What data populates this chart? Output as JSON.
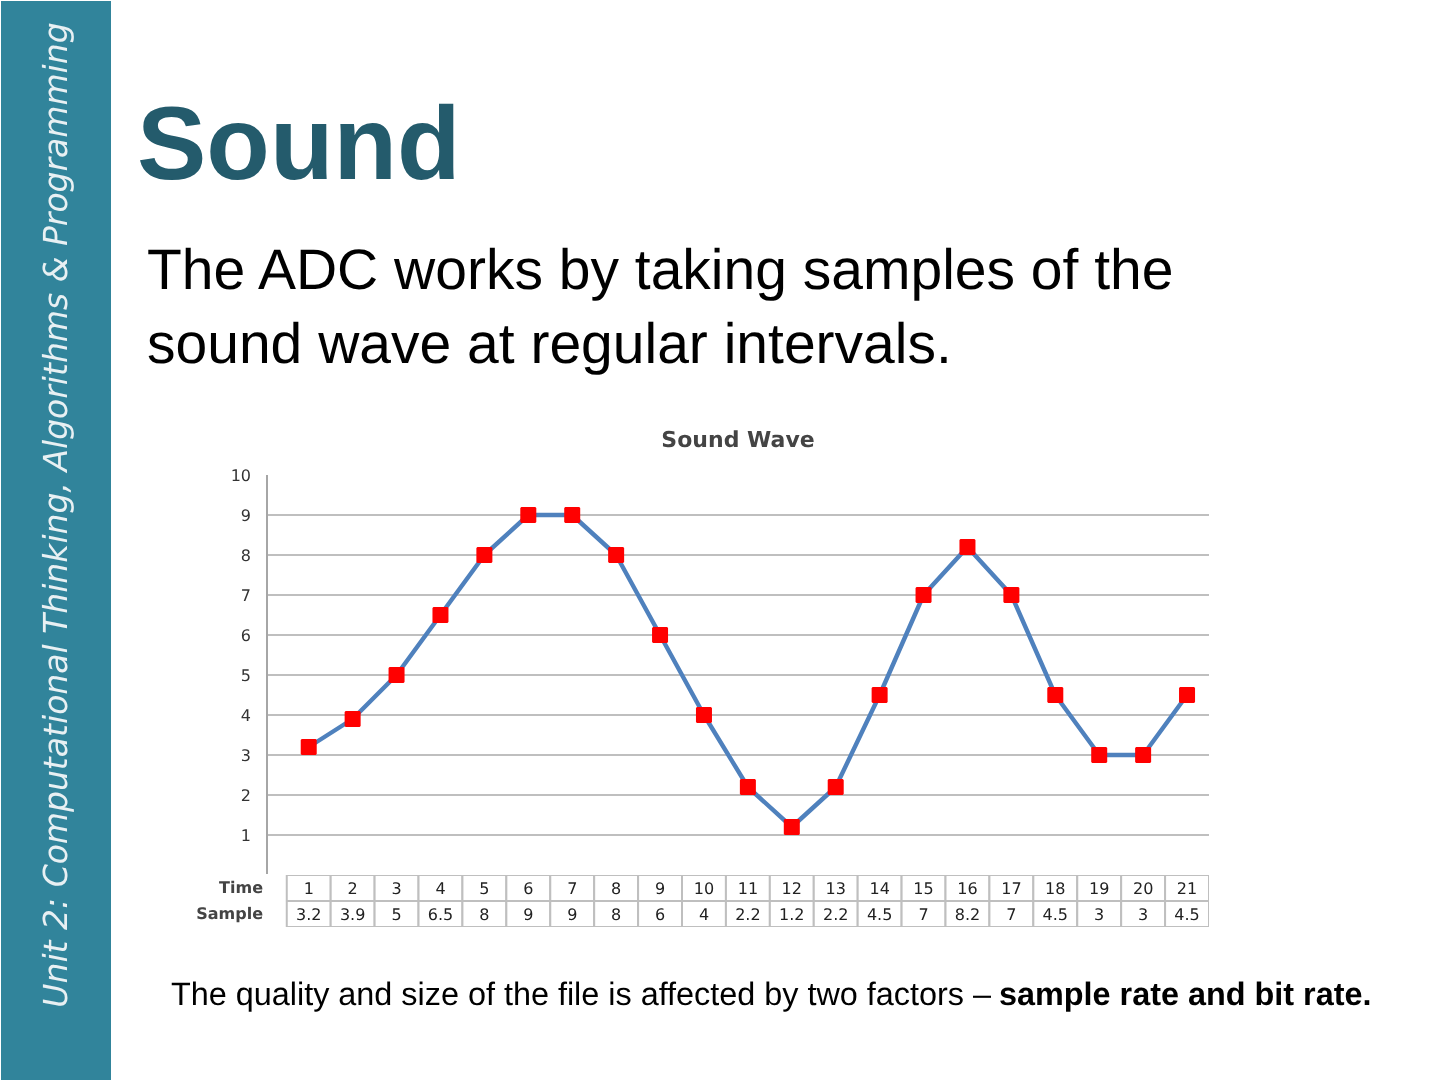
{
  "chart_data": {
    "type": "line",
    "title": "Sound Wave",
    "xlabel": "Time",
    "categories": [
      "1",
      "2",
      "3",
      "4",
      "5",
      "6",
      "7",
      "8",
      "9",
      "10",
      "11",
      "12",
      "13",
      "14",
      "15",
      "16",
      "17",
      "18",
      "19",
      "20",
      "21"
    ],
    "series": [
      {
        "name": "Sample",
        "color": "#4f81bd",
        "colors": [
          "#ff0000",
          "#ff0000",
          "#ff0000",
          "#ff0000",
          "#ff0000",
          "#ff0000",
          "#ff0000",
          "#ff0000",
          "#ff0000",
          "#ff0000",
          "#ff0000",
          "#ff0000",
          "#ff0000",
          "#ff0000",
          "#ff0000",
          "#ff0000",
          "#ff0000",
          "#ff0000",
          "#ff0000",
          "#ff0000",
          "#ff0000"
        ],
        "values": [
          3.2,
          3.9,
          5,
          6.5,
          8,
          9,
          9,
          8,
          6,
          4,
          2.2,
          1.2,
          2.2,
          4.5,
          7,
          8.2,
          7,
          4.5,
          3,
          3,
          4.5
        ]
      }
    ],
    "ylim": [
      0,
      10
    ],
    "yticks": [
      1,
      2,
      3,
      4,
      5,
      6,
      7,
      8,
      9,
      10
    ],
    "grid": "y",
    "marker": "square",
    "line_style": "solid",
    "data_labels": true,
    "annotations": [
      "Unit 2: Computational Thinking, Algorithms & Programming",
      "Sound",
      "The ADC works by taking samples of the sound wave at regular intervals.",
      "The quality and size of the file is affected by two factors –",
      "sample rate and bit rate."
    ]
  }
}
